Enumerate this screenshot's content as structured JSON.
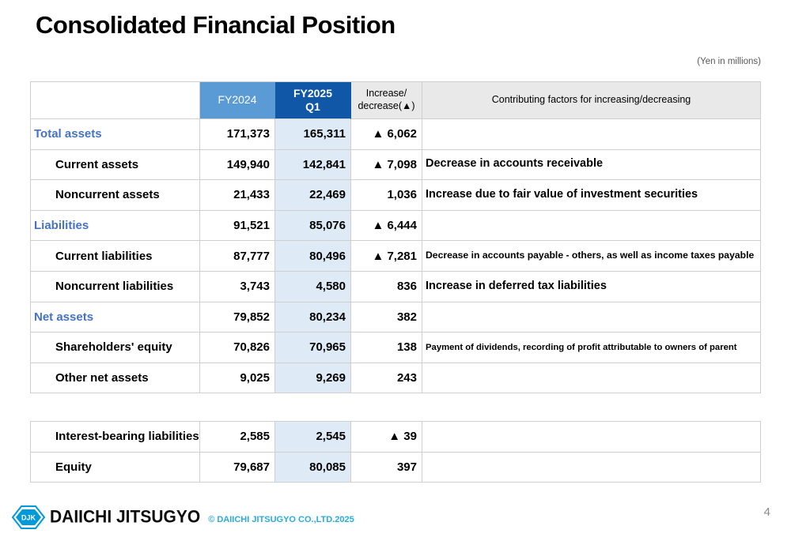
{
  "slide": {
    "title": "Consolidated Financial Position",
    "unit_note": "(Yen in millions)",
    "page_number": "4"
  },
  "table": {
    "headers": {
      "row_label": "",
      "fy2024": "FY2024",
      "fy2025_line1": "FY2025",
      "fy2025_line2": "Q1",
      "increase_line1": "Increase/",
      "increase_line2": "decrease(▲)",
      "factors": "Contributing factors for increasing/decreasing"
    },
    "rows": [
      {
        "label": "Total assets",
        "level": "category",
        "fy2024": "171,373",
        "fy2025": "165,311",
        "change": "▲ 6,062",
        "factor": "",
        "factor_size": "default"
      },
      {
        "label": "Current assets",
        "level": "sub",
        "fy2024": "149,940",
        "fy2025": "142,841",
        "change": "▲ 7,098",
        "factor": "Decrease in accounts receivable",
        "factor_size": "default"
      },
      {
        "label": "Noncurrent assets",
        "level": "sub",
        "fy2024": "21,433",
        "fy2025": "22,469",
        "change": "1,036",
        "factor": "Increase due to fair value of investment securities",
        "factor_size": "default"
      },
      {
        "label": "Liabilities",
        "level": "category",
        "fy2024": "91,521",
        "fy2025": "85,076",
        "change": "▲ 6,444",
        "factor": "",
        "factor_size": "default"
      },
      {
        "label": "Current liabilities",
        "level": "sub",
        "fy2024": "87,777",
        "fy2025": "80,496",
        "change": "▲ 7,281",
        "factor": "Decrease in accounts payable - others, as well as income taxes payable",
        "factor_size": "small"
      },
      {
        "label": "Noncurrent liabilities",
        "level": "sub",
        "fy2024": "3,743",
        "fy2025": "4,580",
        "change": "836",
        "factor": "Increase in deferred tax liabilities",
        "factor_size": "default"
      },
      {
        "label": "Net assets",
        "level": "category",
        "fy2024": "79,852",
        "fy2025": "80,234",
        "change": "382",
        "factor": "",
        "factor_size": "default"
      },
      {
        "label": "Shareholders' equity",
        "level": "sub",
        "fy2024": "70,826",
        "fy2025": "70,965",
        "change": "138",
        "factor": "Payment of dividends, recording of profit attributable to owners of parent",
        "factor_size": "xsmall"
      },
      {
        "label": "Other net assets",
        "level": "sub",
        "fy2024": "9,025",
        "fy2025": "9,269",
        "change": "243",
        "factor": "",
        "factor_size": "default"
      }
    ]
  },
  "table2": {
    "rows": [
      {
        "label": "Interest-bearing liabilities",
        "level": "sub",
        "fy2024": "2,585",
        "fy2025": "2,545",
        "change": "▲ 39",
        "factor": "",
        "factor_size": "default"
      },
      {
        "label": "Equity",
        "level": "sub",
        "fy2024": "79,687",
        "fy2025": "80,085",
        "change": "397",
        "factor": "",
        "factor_size": "default"
      }
    ]
  },
  "footer": {
    "logo_text": "DJK",
    "company": "DAIICHI JITSUGYO",
    "copyright": "© DAIICHI JITSUGYO CO.,LTD.2025"
  },
  "colors": {
    "fy2024_header": "#5B9BD5",
    "fy2025_header": "#1057A8",
    "fy2025_column": "#DEEBF7",
    "gray_header": "#E9E9E9",
    "category_text": "#4472C4",
    "copyright_text": "#29ABE2",
    "logo_blue": "#0099D9"
  }
}
